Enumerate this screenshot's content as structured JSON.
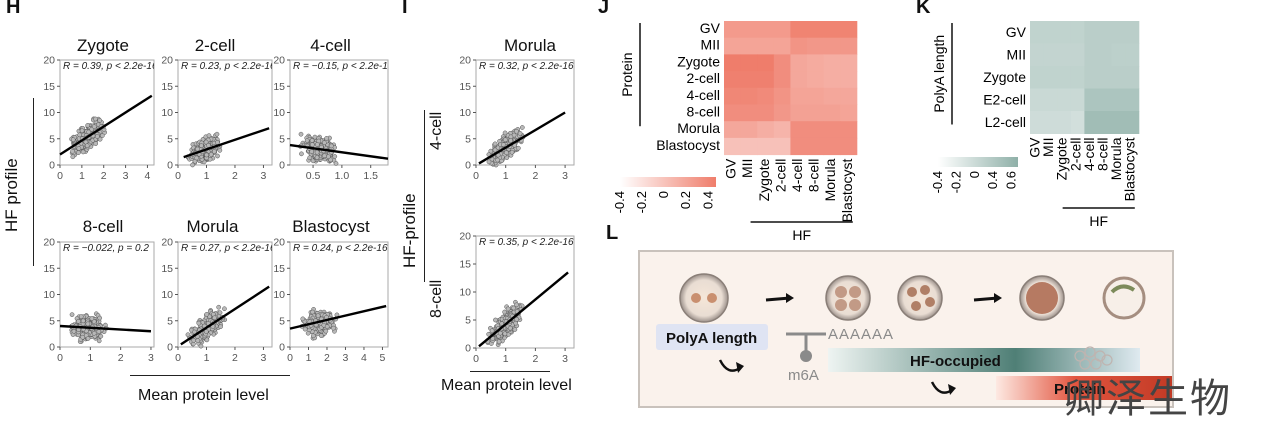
{
  "panels": {
    "H": "H",
    "I": "I",
    "J": "J",
    "K": "K",
    "L": "L"
  },
  "panel_H": {
    "ylabel": "HF profile",
    "xlabel": "Mean protein level",
    "plots": [
      {
        "title": "Zygote",
        "stat": "R = 0.39, p < 2.2e-16",
        "xticks": [
          "0",
          "1",
          "2",
          "3",
          "4"
        ],
        "yticks": [
          "0",
          "5",
          "10",
          "15",
          "20"
        ]
      },
      {
        "title": "2-cell",
        "stat": "R = 0.23, p < 2.2e-16",
        "xticks": [
          "0",
          "1",
          "2",
          "3"
        ],
        "yticks": [
          "0",
          "5",
          "10",
          "15",
          "20"
        ]
      },
      {
        "title": "4-cell",
        "stat": "R = −0.15, p < 2.2e-16",
        "xticks": [
          "0.5",
          "1.0",
          "1.5"
        ],
        "yticks": [
          "0",
          "5",
          "10",
          "15",
          "20"
        ]
      },
      {
        "title": "8-cell",
        "stat": "R = −0.022, p = 0.2",
        "xticks": [
          "0",
          "1",
          "2",
          "3"
        ],
        "yticks": [
          "0",
          "5",
          "10",
          "15",
          "20"
        ]
      },
      {
        "title": "Morula",
        "stat": "R = 0.27, p < 2.2e-16",
        "xticks": [
          "0",
          "1",
          "2",
          "3"
        ],
        "yticks": [
          "0",
          "5",
          "10",
          "15",
          "20"
        ]
      },
      {
        "title": "Blastocyst",
        "stat": "R = 0.24, p < 2.2e-16",
        "xticks": [
          "0",
          "1",
          "2",
          "3",
          "4",
          "5"
        ],
        "yticks": [
          "0",
          "5",
          "10",
          "15",
          "20"
        ]
      }
    ]
  },
  "panel_I": {
    "ylabel": "HF-profile",
    "xlabel": "Mean protein level",
    "group_labels": [
      "4-cell",
      "8-cell"
    ],
    "plots": [
      {
        "title": "Morula",
        "stat": "R = 0.32, p < 2.2e-16",
        "xticks": [
          "0",
          "1",
          "2",
          "3"
        ],
        "yticks": [
          "0",
          "5",
          "10",
          "15",
          "20"
        ]
      },
      {
        "title": "",
        "stat": "R = 0.35, p < 2.2e-16",
        "xticks": [
          "0",
          "1",
          "2",
          "3"
        ],
        "yticks": [
          "0",
          "5",
          "10",
          "15",
          "20"
        ]
      }
    ]
  },
  "panel_J": {
    "row_group_label": "Protein",
    "col_group_label": "HF",
    "rows": [
      "GV",
      "MII",
      "Zygote",
      "2-cell",
      "4-cell",
      "8-cell",
      "Morula",
      "Blastocyst"
    ],
    "cols": [
      "GV",
      "MII",
      "Zygote",
      "2-cell",
      "4-cell",
      "8-cell",
      "Morula",
      "Blastocyst"
    ],
    "legend_ticks": [
      "-0.4",
      "-0.2",
      "0",
      "0.2",
      "0.4"
    ],
    "colors": {
      "low": "#ffffff",
      "high": "#ef7d6b"
    }
  },
  "panel_K": {
    "row_group_label": "PolyA length",
    "col_group_label": "HF",
    "rows": [
      "GV",
      "MII",
      "Zygote",
      "E2-cell",
      "L2-cell"
    ],
    "cols": [
      "GV",
      "MII",
      "Zygote",
      "2-cell",
      "4-cell",
      "8-cell",
      "Morula",
      "Blastocyst"
    ],
    "legend_ticks": [
      "-0.4",
      "-0.2",
      "0",
      "0.4",
      "0.6"
    ],
    "colors": {
      "low": "#ffffff",
      "high": "#8fb0a8"
    }
  },
  "panel_L": {
    "polya_label": "PolyA length",
    "polya_seq": "AAAAAA",
    "m6a_label": "m6A",
    "hf_label": "HF-occupied",
    "protein_label": "Protein"
  },
  "watermark": "卿泽生物",
  "chart_data": [
    {
      "type": "scatter",
      "title": "Zygote",
      "xlabel": "Mean protein level",
      "ylabel": "HF profile",
      "xlim": [
        0,
        4.3
      ],
      "ylim": [
        0,
        20
      ],
      "annotation": "R = 0.39, p < 2.2e-16",
      "regression": {
        "x": [
          0,
          4.2
        ],
        "y": [
          2,
          13.2
        ]
      }
    },
    {
      "type": "scatter",
      "title": "2-cell",
      "xlabel": "Mean protein level",
      "ylabel": "HF profile",
      "xlim": [
        0,
        3.3
      ],
      "ylim": [
        0,
        20
      ],
      "annotation": "R = 0.23, p < 2.2e-16",
      "regression": {
        "x": [
          0.2,
          3.2
        ],
        "y": [
          1.5,
          7
        ]
      }
    },
    {
      "type": "scatter",
      "title": "4-cell",
      "xlabel": "Mean protein level",
      "ylabel": "HF profile",
      "xlim": [
        0.1,
        1.8
      ],
      "ylim": [
        0,
        20
      ],
      "annotation": "R = −0.15, p < 2.2e-16",
      "regression": {
        "x": [
          0.1,
          1.8
        ],
        "y": [
          3.8,
          1.2
        ]
      }
    },
    {
      "type": "scatter",
      "title": "8-cell",
      "xlabel": "Mean protein level",
      "ylabel": "HF profile",
      "xlim": [
        0,
        3.1
      ],
      "ylim": [
        0,
        20
      ],
      "annotation": "R = −0.022, p = 0.2",
      "regression": {
        "x": [
          0,
          3
        ],
        "y": [
          4,
          3
        ]
      }
    },
    {
      "type": "scatter",
      "title": "Morula",
      "xlabel": "Mean protein level",
      "ylabel": "HF profile",
      "xlim": [
        0,
        3.3
      ],
      "ylim": [
        0,
        20
      ],
      "annotation": "R = 0.27, p < 2.2e-16",
      "regression": {
        "x": [
          0.1,
          3.2
        ],
        "y": [
          0.5,
          11.5
        ]
      }
    },
    {
      "type": "scatter",
      "title": "Blastocyst",
      "xlabel": "Mean protein level",
      "ylabel": "HF profile",
      "xlim": [
        0,
        5.3
      ],
      "ylim": [
        0,
        20
      ],
      "annotation": "R = 0.24, p < 2.2e-16",
      "regression": {
        "x": [
          0,
          5.2
        ],
        "y": [
          3.5,
          7.8
        ]
      }
    },
    {
      "type": "scatter",
      "title": "Morula",
      "xlabel": "Mean protein level",
      "ylabel": "HF-profile",
      "xlim": [
        0,
        3.3
      ],
      "ylim": [
        0,
        20
      ],
      "annotation": "R = 0.32, p < 2.2e-16",
      "regression": {
        "x": [
          0.1,
          3
        ],
        "y": [
          0.3,
          10
        ]
      }
    },
    {
      "type": "scatter",
      "title": "",
      "xlabel": "Mean protein level",
      "ylabel": "HF-profile",
      "xlim": [
        0,
        3.3
      ],
      "ylim": [
        0,
        20
      ],
      "annotation": "R = 0.35, p < 2.2e-16",
      "regression": {
        "x": [
          0.1,
          3.1
        ],
        "y": [
          0.3,
          13.5
        ]
      }
    },
    {
      "type": "heatmap",
      "rows": [
        "GV",
        "MII",
        "Zygote",
        "2-cell",
        "4-cell",
        "8-cell",
        "Morula",
        "Blastocyst"
      ],
      "cols": [
        "GV",
        "MII",
        "Zygote",
        "2-cell",
        "4-cell",
        "8-cell",
        "Morula",
        "Blastocyst"
      ],
      "xlabel": "HF",
      "ylabel": "Protein",
      "zlim": [
        -0.4,
        0.4
      ],
      "values": [
        [
          0.22,
          0.22,
          0.22,
          0.22,
          0.36,
          0.36,
          0.36,
          0.36
        ],
        [
          0.16,
          0.16,
          0.16,
          0.16,
          0.26,
          0.24,
          0.24,
          0.24
        ],
        [
          0.42,
          0.42,
          0.42,
          0.3,
          0.14,
          0.12,
          0.1,
          0.1
        ],
        [
          0.38,
          0.38,
          0.38,
          0.3,
          0.14,
          0.12,
          0.1,
          0.1
        ],
        [
          0.34,
          0.34,
          0.32,
          0.26,
          0.16,
          0.16,
          0.14,
          0.14
        ],
        [
          0.3,
          0.3,
          0.3,
          0.24,
          0.18,
          0.18,
          0.18,
          0.16
        ],
        [
          0.14,
          0.14,
          0.1,
          0.06,
          0.3,
          0.3,
          0.3,
          0.3
        ],
        [
          -0.02,
          -0.02,
          -0.02,
          -0.02,
          0.3,
          0.3,
          0.3,
          0.3
        ]
      ]
    },
    {
      "type": "heatmap",
      "rows": [
        "GV",
        "MII",
        "Zygote",
        "E2-cell",
        "L2-cell"
      ],
      "cols": [
        "GV",
        "MII",
        "Zygote",
        "2-cell",
        "4-cell",
        "8-cell",
        "Morula",
        "Blastocyst"
      ],
      "xlabel": "HF",
      "ylabel": "PolyA length",
      "zlim": [
        -0.4,
        0.6
      ],
      "values": [
        [
          0.16,
          0.16,
          0.16,
          0.16,
          0.22,
          0.22,
          0.22,
          0.22
        ],
        [
          0.14,
          0.14,
          0.14,
          0.14,
          0.22,
          0.22,
          0.2,
          0.2
        ],
        [
          0.16,
          0.16,
          0.16,
          0.16,
          0.22,
          0.22,
          0.22,
          0.22
        ],
        [
          0.08,
          0.08,
          0.08,
          0.08,
          0.34,
          0.34,
          0.34,
          0.34
        ],
        [
          0.04,
          0.04,
          0.04,
          0.0,
          0.44,
          0.44,
          0.44,
          0.44
        ]
      ]
    }
  ]
}
